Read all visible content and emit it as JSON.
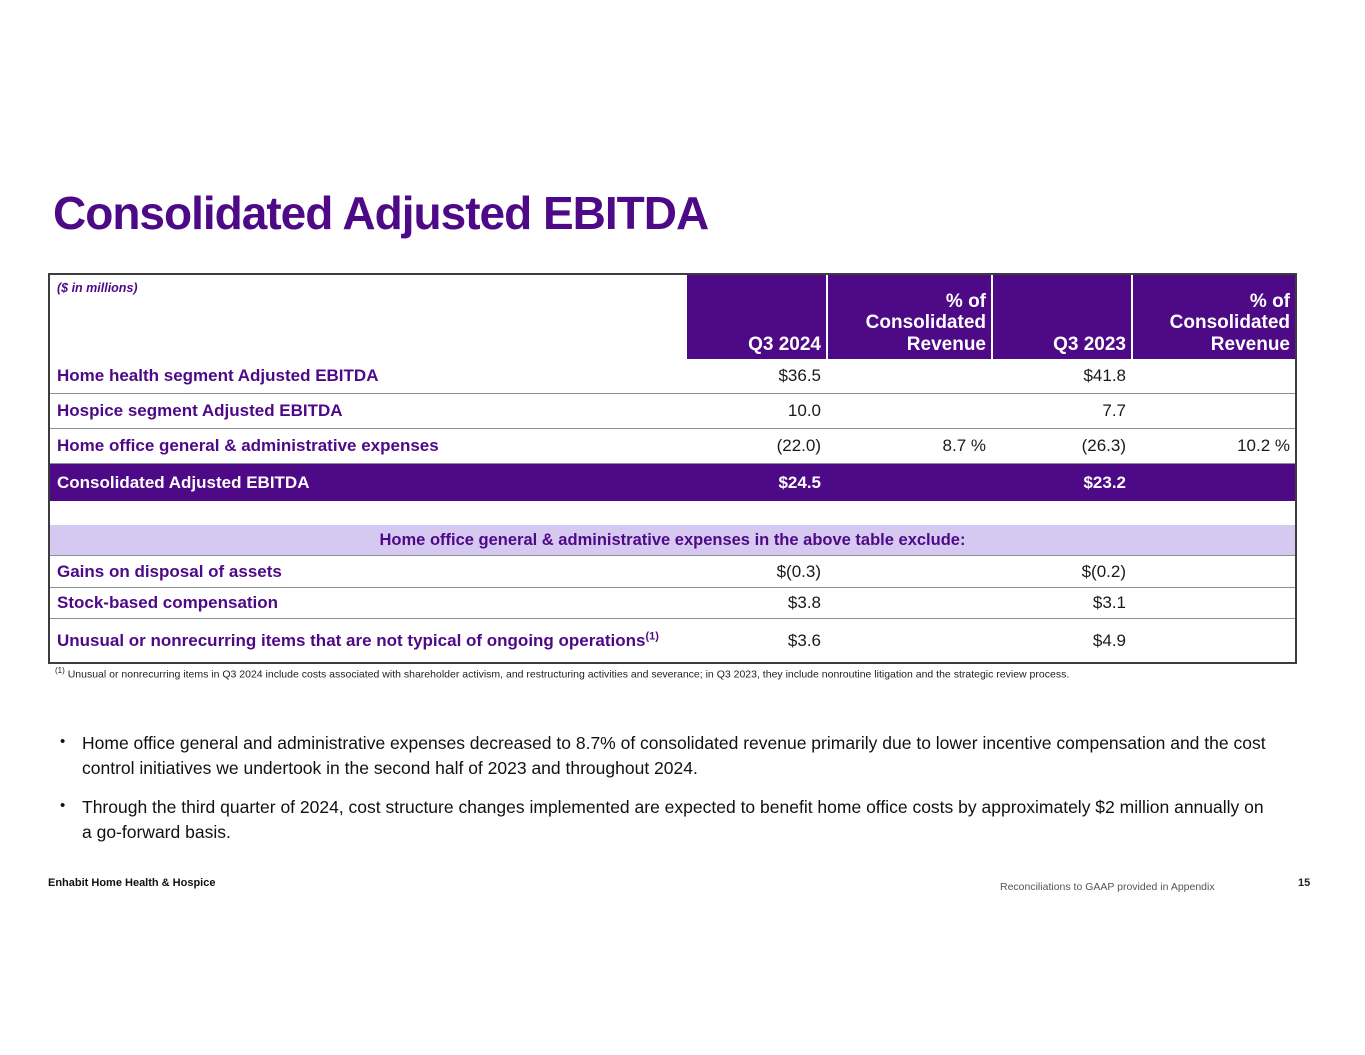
{
  "page": {
    "title": "Consolidated Adjusted EBITDA",
    "units_note": "($ in millions)"
  },
  "colors": {
    "brand_purple": "#4E0987",
    "lavender_banner": "#D5C8F1",
    "row_divider": "#909090"
  },
  "table": {
    "headers": {
      "q3_2024": "Q3 2024",
      "pct_2024": "% of Consolidated Revenue",
      "q3_2023": "Q3 2023",
      "pct_2023": "% of Consolidated Revenue"
    },
    "rows": [
      {
        "label": "Home health segment Adjusted EBITDA",
        "q3_2024": "$36.5",
        "pct_2024": "",
        "q3_2023": "$41.8",
        "pct_2023": ""
      },
      {
        "label": "Hospice segment Adjusted EBITDA",
        "q3_2024": "10.0",
        "pct_2024": "",
        "q3_2023": "7.7",
        "pct_2023": ""
      },
      {
        "label": "Home office general & administrative expenses",
        "q3_2024": "(22.0)",
        "pct_2024": "8.7 %",
        "q3_2023": "(26.3)",
        "pct_2023": "10.2 %"
      },
      {
        "label": "Consolidated Adjusted EBITDA",
        "q3_2024": "$24.5",
        "pct_2024": "",
        "q3_2023": "$23.2",
        "pct_2023": ""
      }
    ],
    "exclusions": {
      "banner": "Home office general & administrative expenses in the above table exclude:",
      "rows": [
        {
          "label": "Gains on disposal of assets",
          "marker": "",
          "q3_2024": "$(0.3)",
          "q3_2023": "$(0.2)"
        },
        {
          "label": "Stock-based compensation",
          "marker": "",
          "q3_2024": "$3.8",
          "q3_2023": "$3.1"
        },
        {
          "label": "Unusual or nonrecurring items that are not typical of ongoing operations",
          "marker": "(1)",
          "q3_2024": "$3.6",
          "q3_2023": "$4.9"
        }
      ]
    }
  },
  "footnote": {
    "marker": "(1)",
    "text": " Unusual or nonrecurring items in Q3 2024 include costs associated with shareholder activism, and restructuring activities and severance; in Q3 2023, they include nonroutine litigation and the strategic review process."
  },
  "bullets": [
    "Home office general and administrative expenses decreased to 8.7% of consolidated revenue primarily due to lower incentive compensation and the cost control initiatives we undertook in the second half of 2023 and throughout 2024.",
    "Through the third quarter of 2024, cost structure changes implemented are expected to benefit home office costs by approximately $2 million annually on a go-forward basis."
  ],
  "bullet_glyph": "•",
  "footer": {
    "company": "Enhabit Home Health & Hospice",
    "note": "Reconciliations to GAAP provided in Appendix",
    "page_number": "15"
  }
}
